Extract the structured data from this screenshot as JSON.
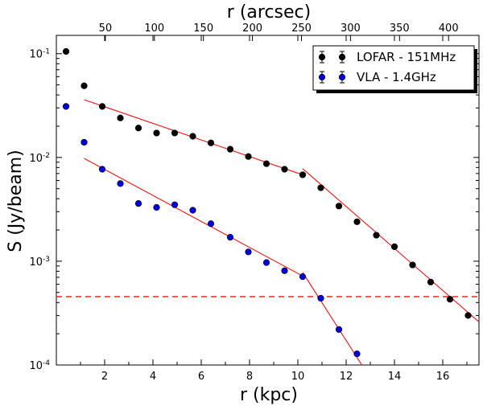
{
  "chart_data": {
    "type": "scatter",
    "xlabel": "r (kpc)",
    "ylabel": "S (Jy/beam)",
    "top_xlabel": "r (arcsec)",
    "xlim": [
      0.0,
      17.5
    ],
    "ylim": [
      0.0001,
      0.15
    ],
    "yscale": "log",
    "x_ticks": [
      2,
      4,
      6,
      8,
      10,
      12,
      14,
      16
    ],
    "top_x_ticks_arcsec": [
      50,
      100,
      150,
      200,
      250,
      300,
      350,
      400
    ],
    "kpc_per_arcsec": 0.0406,
    "y_tick_labels": [
      {
        "value": 0.1,
        "mantissa": "10",
        "exponent": "-1"
      },
      {
        "value": 0.01,
        "mantissa": "10",
        "exponent": "-2"
      },
      {
        "value": 0.001,
        "mantissa": "10",
        "exponent": "-3"
      },
      {
        "value": 0.0001,
        "mantissa": "10",
        "exponent": "-4"
      }
    ],
    "legend_position": "top-right",
    "series": [
      {
        "name": "LOFAR - 151MHz",
        "color": "#000000",
        "x": [
          0.4,
          1.15,
          1.9,
          2.65,
          3.4,
          4.15,
          4.9,
          5.65,
          6.4,
          7.2,
          7.95,
          8.7,
          9.45,
          10.2,
          10.95,
          11.7,
          12.45,
          13.25,
          14.0,
          14.75,
          15.5,
          16.3,
          17.05
        ],
        "y": [
          0.105,
          0.049,
          0.031,
          0.024,
          0.0192,
          0.0172,
          0.0172,
          0.016,
          0.0138,
          0.012,
          0.0102,
          0.0087,
          0.0077,
          0.0068,
          0.0051,
          0.0034,
          0.0024,
          0.00178,
          0.00138,
          0.00092,
          0.00063,
          0.00043,
          0.0003
        ]
      },
      {
        "name": "VLA - 1.4GHz",
        "color": "#0000dd",
        "x": [
          0.4,
          1.15,
          1.9,
          2.65,
          3.4,
          4.15,
          4.9,
          5.65,
          6.4,
          7.2,
          7.95,
          8.7,
          9.45,
          10.2,
          10.95,
          11.7,
          12.45
        ],
        "y": [
          0.031,
          0.014,
          0.0077,
          0.0056,
          0.0036,
          0.0033,
          0.0035,
          0.0031,
          0.0023,
          0.0017,
          0.00123,
          0.00097,
          0.00081,
          0.00071,
          0.00044,
          0.00022,
          0.000128
        ]
      }
    ],
    "fit_lines": [
      {
        "series": "LOFAR - 151MHz",
        "x": [
          1.15,
          10.2
        ],
        "y": [
          0.036,
          0.0068
        ]
      },
      {
        "series": "LOFAR - 151MHz",
        "x": [
          10.2,
          17.5
        ],
        "y": [
          0.0078,
          0.00026
        ]
      },
      {
        "series": "VLA - 1.4GHz",
        "x": [
          1.15,
          10.2
        ],
        "y": [
          0.0098,
          0.00072
        ]
      },
      {
        "series": "VLA - 1.4GHz",
        "x": [
          10.2,
          12.65
        ],
        "y": [
          0.00078,
          0.0001
        ]
      }
    ],
    "threshold_line": {
      "y": 0.000455,
      "style": "dashed",
      "color": "#ee2222"
    },
    "fit_color": "#ee1111"
  }
}
